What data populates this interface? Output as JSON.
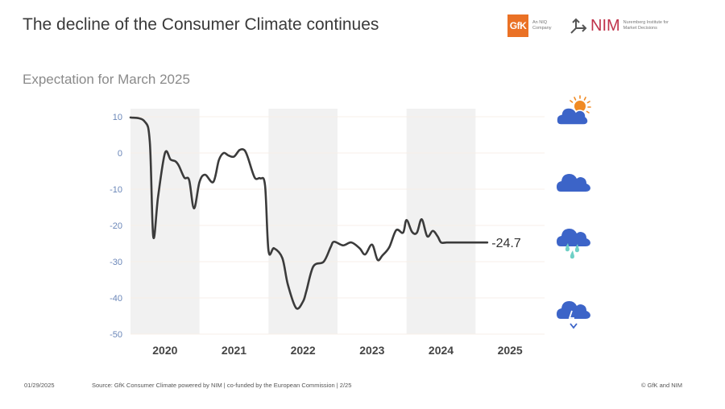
{
  "header": {
    "title": "The decline of the Consumer Climate continues",
    "subtitle": "Expectation for March 2025"
  },
  "logos": {
    "gfk_mark": "GfK",
    "gfk_tagline": "An NIQ Company",
    "nim_mark": "NIM",
    "nim_tagline": "Nuremberg Institute for Market Decisions"
  },
  "colors": {
    "line": "#3b3b3b",
    "shade": "#f1f1f1",
    "ytick": "#6a86b8",
    "cloud": "#3c64c8",
    "sun": "#f08a24",
    "rain": "#6fd0c6"
  },
  "legend_icons": [
    {
      "name": "cloud-sun-icon"
    },
    {
      "name": "cloud-icon"
    },
    {
      "name": "cloud-rain-icon"
    },
    {
      "name": "cloud-lightning-icon"
    }
  ],
  "chart_data": {
    "type": "line",
    "title": "The decline of the Consumer Climate continues",
    "subtitle": "Expectation for March 2025",
    "xlabel": "",
    "ylabel": "",
    "ylim": [
      -50,
      10
    ],
    "xlim": [
      2019.5,
      2025.5
    ],
    "yticks": [
      10,
      0,
      -10,
      -20,
      -30,
      -40,
      -50
    ],
    "xtick_labels": [
      "2020",
      "2021",
      "2022",
      "2023",
      "2024",
      "2025"
    ],
    "shaded_years": [
      "2020",
      "2022",
      "2024"
    ],
    "grid": true,
    "legend": "none",
    "annotation": {
      "text": "-24.7",
      "x": 2025.2,
      "y": -24.7
    },
    "series": [
      {
        "name": "Consumer Climate",
        "x": [
          2019.5,
          2019.7,
          2019.78,
          2019.83,
          2019.9,
          2020.0,
          2020.08,
          2020.15,
          2020.2,
          2020.28,
          2020.35,
          2020.42,
          2020.5,
          2020.58,
          2020.7,
          2020.78,
          2020.85,
          2020.92,
          2021.0,
          2021.08,
          2021.15,
          2021.2,
          2021.3,
          2021.38,
          2021.45,
          2021.5,
          2021.58,
          2021.7,
          2021.78,
          2021.9,
          2022.0,
          2022.05,
          2022.15,
          2022.3,
          2022.4,
          2022.45,
          2022.58,
          2022.7,
          2022.82,
          2022.9,
          2023.0,
          2023.08,
          2023.15,
          2023.25,
          2023.35,
          2023.45,
          2023.5,
          2023.58,
          2023.65,
          2023.72,
          2023.8,
          2023.88,
          2023.95,
          2024.0,
          2024.08,
          2024.17,
          2024.25,
          2024.33,
          2024.4,
          2024.5,
          2024.58,
          2024.67,
          2024.75,
          2025.1,
          2025.2
        ],
        "values": [
          9.8,
          8.8,
          3.0,
          -23.1,
          -12.0,
          0.0,
          -1.8,
          -2.3,
          -3.5,
          -6.8,
          -7.5,
          -15.3,
          -8.0,
          -6.0,
          -8.0,
          -2.0,
          0.0,
          -0.7,
          -1.0,
          0.8,
          0.8,
          -1.2,
          -6.8,
          -7.0,
          -9.0,
          -27.0,
          -26.3,
          -29.0,
          -36.3,
          -42.8,
          -41.0,
          -38.0,
          -31.3,
          -30.0,
          -26.0,
          -24.5,
          -25.5,
          -24.7,
          -26.3,
          -28.0,
          -25.3,
          -29.5,
          -28.3,
          -26.0,
          -21.3,
          -22.0,
          -18.5,
          -21.8,
          -22.0,
          -18.3,
          -23.0,
          -21.5,
          -23.0,
          -24.7,
          -24.7,
          -24.7,
          -24.7,
          -24.7,
          -24.7,
          -24.7,
          -24.7,
          -24.7,
          -24.7,
          -24.7,
          -24.7
        ]
      }
    ]
  },
  "footer": {
    "date": "01/29/2025",
    "source": "Source: GfK Consumer Climate powered by NIM | co-funded by the European Commission | 2/25",
    "copyright": "© GfK and NIM"
  }
}
